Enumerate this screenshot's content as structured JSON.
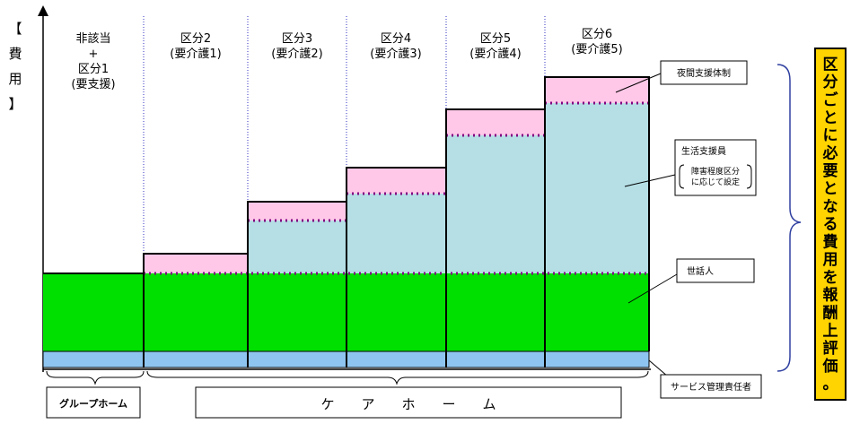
{
  "axis_label_chars": [
    "【",
    "費",
    "用",
    "】"
  ],
  "categories": [
    {
      "lines": [
        "非該当",
        "+",
        "区分1",
        "(要支援)"
      ]
    },
    {
      "lines": [
        "区分2",
        "(要介護1)"
      ]
    },
    {
      "lines": [
        "区分3",
        "(要介護2)"
      ]
    },
    {
      "lines": [
        "区分4",
        "(要介護3)"
      ]
    },
    {
      "lines": [
        "区分5",
        "(要介護4)"
      ]
    },
    {
      "lines": [
        "区分6",
        "(要介護5)"
      ]
    }
  ],
  "callouts": {
    "night_support": "夜間支援体制",
    "life_support": "生活支援員",
    "life_support_note": [
      "障害程度区分",
      "に応じて設定"
    ],
    "caretaker": "世話人",
    "service_manager": "サービス管理責任者"
  },
  "bottom_labels": {
    "group_home": "グループホーム",
    "care_home": "ケ　　ア　　ホ　　ー　　ム"
  },
  "side_note": "区分ごとに必要となる費用を報酬上評価。",
  "colors": {
    "green": "#00e000",
    "blue": "#8ec5f0",
    "teal": "#b5dfe5",
    "pink": "#ffc8e8",
    "dots": "#800080",
    "side_bg": "#ffd400"
  }
}
